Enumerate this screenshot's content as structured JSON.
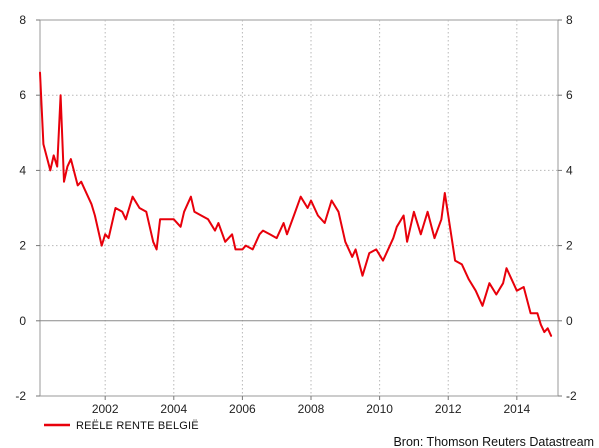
{
  "chart_data": {
    "type": "line",
    "x_axis": {
      "min": 2000.1,
      "max": 2015.2,
      "ticks": [
        2002,
        2004,
        2006,
        2008,
        2010,
        2012,
        2014
      ],
      "tick_labels": [
        "2002",
        "2004",
        "2006",
        "2008",
        "2010",
        "2012",
        "2014"
      ]
    },
    "y_axis": {
      "min": -2,
      "max": 8,
      "ticks": [
        -2,
        0,
        2,
        4,
        6,
        8
      ],
      "tick_labels": [
        "-2",
        "0",
        "2",
        "4",
        "6",
        "8"
      ],
      "right_tick_labels": [
        "-2",
        "0",
        "2",
        "4",
        "6",
        "8"
      ]
    },
    "grid": true,
    "zero_line": true,
    "series": [
      {
        "name": "REËLE RENTE BELGIË",
        "color": "#e8000b",
        "x": [
          2000.1,
          2000.2,
          2000.4,
          2000.5,
          2000.6,
          2000.7,
          2000.8,
          2000.9,
          2001.0,
          2001.2,
          2001.3,
          2001.4,
          2001.6,
          2001.7,
          2001.9,
          2002.0,
          2002.1,
          2002.3,
          2002.5,
          2002.6,
          2002.8,
          2003.0,
          2003.2,
          2003.4,
          2003.5,
          2003.6,
          2003.8,
          2004.0,
          2004.2,
          2004.3,
          2004.5,
          2004.6,
          2004.8,
          2005.0,
          2005.2,
          2005.3,
          2005.5,
          2005.7,
          2005.8,
          2006.0,
          2006.1,
          2006.3,
          2006.5,
          2006.6,
          2006.8,
          2007.0,
          2007.2,
          2007.3,
          2007.5,
          2007.7,
          2007.9,
          2008.0,
          2008.2,
          2008.4,
          2008.6,
          2008.8,
          2009.0,
          2009.2,
          2009.3,
          2009.5,
          2009.7,
          2009.9,
          2010.1,
          2010.3,
          2010.4,
          2010.5,
          2010.7,
          2010.8,
          2011.0,
          2011.2,
          2011.3,
          2011.4,
          2011.6,
          2011.8,
          2011.9,
          2012.1,
          2012.2,
          2012.4,
          2012.6,
          2012.8,
          2013.0,
          2013.2,
          2013.4,
          2013.6,
          2013.7,
          2013.9,
          2014.0,
          2014.2,
          2014.4,
          2014.6,
          2014.7,
          2014.8,
          2014.9,
          2015.0
        ],
        "y": [
          6.6,
          4.7,
          4.0,
          4.4,
          4.1,
          6.0,
          3.7,
          4.1,
          4.3,
          3.6,
          3.7,
          3.5,
          3.1,
          2.8,
          2.0,
          2.3,
          2.2,
          3.0,
          2.9,
          2.7,
          3.3,
          3.0,
          2.9,
          2.1,
          1.9,
          2.7,
          2.7,
          2.7,
          2.5,
          2.9,
          3.3,
          2.9,
          2.8,
          2.7,
          2.4,
          2.6,
          2.1,
          2.3,
          1.9,
          1.9,
          2.0,
          1.9,
          2.3,
          2.4,
          2.3,
          2.2,
          2.6,
          2.3,
          2.8,
          3.3,
          3.0,
          3.2,
          2.8,
          2.6,
          3.2,
          2.9,
          2.1,
          1.7,
          1.9,
          1.2,
          1.8,
          1.9,
          1.6,
          2.0,
          2.2,
          2.5,
          2.8,
          2.1,
          2.9,
          2.3,
          2.6,
          2.9,
          2.2,
          2.7,
          3.4,
          2.2,
          1.6,
          1.5,
          1.1,
          0.8,
          0.4,
          1.0,
          0.7,
          1.0,
          1.4,
          1.0,
          0.8,
          0.9,
          0.2,
          0.2,
          -0.1,
          -0.3,
          -0.2,
          -0.4
        ]
      }
    ],
    "legend": {
      "position": "bottom-left"
    },
    "source": "Bron: Thomson Reuters Datastream"
  }
}
